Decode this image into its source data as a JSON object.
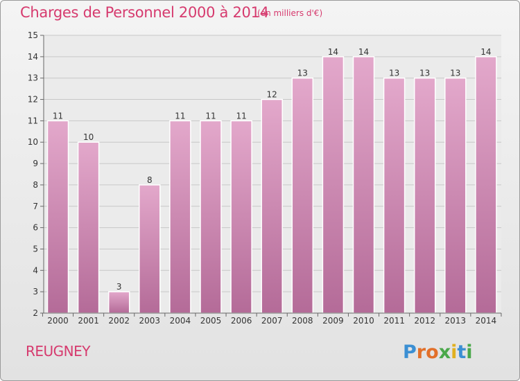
{
  "header": {
    "title": "Charges de Personnel 2000 à 2014",
    "subtitle": "(en milliers d'€)"
  },
  "footer": {
    "commune": "REUGNEY",
    "logo_text": "Proxiti"
  },
  "colors": {
    "title": "#d63a6e",
    "bar_top": "#e3a8cb",
    "bar_bottom": "#b46b98",
    "gridline": "#c8c8c8"
  },
  "chart_data": {
    "type": "bar",
    "title": "Charges de Personnel 2000 à 2014",
    "subtitle": "(en milliers d'€)",
    "categories": [
      "2000",
      "2001",
      "2002",
      "2003",
      "2004",
      "2005",
      "2006",
      "2007",
      "2008",
      "2009",
      "2010",
      "2011",
      "2012",
      "2013",
      "2014"
    ],
    "values": [
      11,
      10,
      3,
      8,
      11,
      11,
      11,
      12,
      13,
      14,
      14,
      13,
      13,
      13,
      14
    ],
    "data_labels": [
      "11",
      "10",
      "3",
      "8",
      "11",
      "11",
      "11",
      "12",
      "13",
      "14",
      "14",
      "13",
      "13",
      "13",
      "14"
    ],
    "ylim": [
      2,
      15
    ],
    "yticks": [
      2,
      3,
      4,
      5,
      6,
      7,
      8,
      9,
      10,
      11,
      12,
      13,
      14,
      15
    ],
    "ytick_labels": [
      "2",
      "3",
      "4",
      "5",
      "6",
      "7",
      "8",
      "9",
      "10",
      "11",
      "12",
      "13",
      "14",
      "15"
    ],
    "xlabel": "",
    "ylabel": "",
    "grid": true,
    "legend": "none"
  }
}
